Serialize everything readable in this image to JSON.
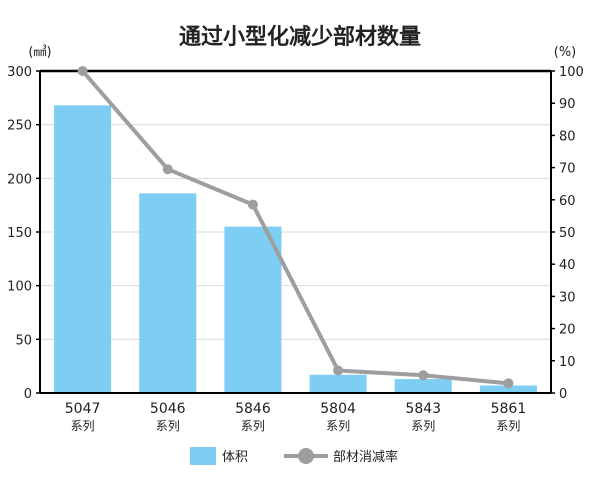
{
  "chart_data": {
    "type": "bar",
    "title": "通过小型化减少部材数量",
    "categories": [
      "5047",
      "5046",
      "5846",
      "5804",
      "5843",
      "5861"
    ],
    "category_sublabel": "系列",
    "series": [
      {
        "name": "体积",
        "type": "bar",
        "axis": "left",
        "values": [
          268,
          186,
          155,
          17,
          13,
          7
        ]
      },
      {
        "name": "部材消减率",
        "type": "line",
        "axis": "right",
        "values": [
          100,
          69.5,
          58.5,
          7,
          5.5,
          3
        ]
      }
    ],
    "y_left": {
      "unit": "(㎣)",
      "ylim": [
        0,
        300
      ],
      "ticks": [
        "0",
        "50",
        "100",
        "150",
        "200",
        "250",
        "300"
      ]
    },
    "y_right": {
      "unit": "(%)",
      "ylim": [
        0,
        100
      ],
      "ticks": [
        "0",
        "10",
        "20",
        "30",
        "40",
        "50",
        "60",
        "70",
        "80",
        "90",
        "100"
      ]
    },
    "grid": true,
    "legend_position": "bottom",
    "colors": {
      "bar": "#7ecef4",
      "line": "#9e9e9e",
      "grid": "#d9d9d9",
      "frame": "#000000"
    }
  }
}
